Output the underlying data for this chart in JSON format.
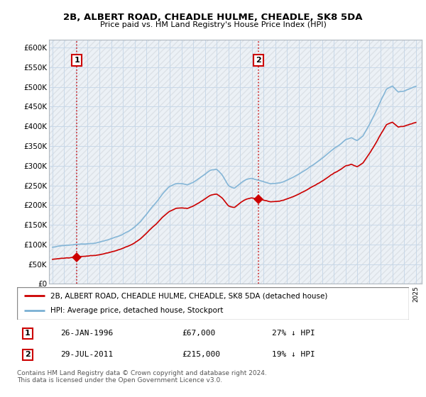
{
  "title": "2B, ALBERT ROAD, CHEADLE HULME, CHEADLE, SK8 5DA",
  "subtitle": "Price paid vs. HM Land Registry's House Price Index (HPI)",
  "ylim": [
    0,
    620000
  ],
  "yticks": [
    0,
    50000,
    100000,
    150000,
    200000,
    250000,
    300000,
    350000,
    400000,
    450000,
    500000,
    550000,
    600000
  ],
  "ytick_labels": [
    "£0",
    "£50K",
    "£100K",
    "£150K",
    "£200K",
    "£250K",
    "£300K",
    "£350K",
    "£400K",
    "£450K",
    "£500K",
    "£550K",
    "£600K"
  ],
  "xlim_left": 1993.7,
  "xlim_right": 2025.5,
  "legend_line1": "2B, ALBERT ROAD, CHEADLE HULME, CHEADLE, SK8 5DA (detached house)",
  "legend_line2": "HPI: Average price, detached house, Stockport",
  "sale1_label": "1",
  "sale1_date": "26-JAN-1996",
  "sale1_price": "£67,000",
  "sale1_hpi": "27% ↓ HPI",
  "sale2_label": "2",
  "sale2_date": "29-JUL-2011",
  "sale2_price": "£215,000",
  "sale2_hpi": "19% ↓ HPI",
  "footer": "Contains HM Land Registry data © Crown copyright and database right 2024.\nThis data is licensed under the Open Government Licence v3.0.",
  "sale1_x": 1996.07,
  "sale1_y": 67000,
  "sale2_x": 2011.57,
  "sale2_y": 215000,
  "line_color": "#cc0000",
  "hpi_color": "#7ab0d4",
  "grid_color": "#c8d8e8",
  "hatch_color": "#d0d0d0",
  "bg_blue": "#e8f0f8"
}
